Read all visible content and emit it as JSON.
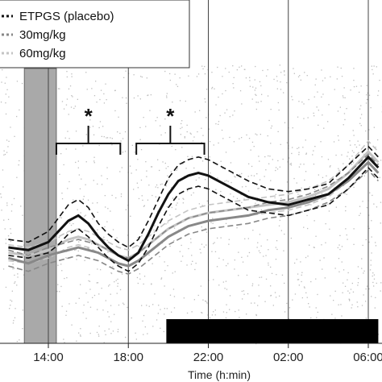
{
  "chart_data": {
    "type": "line",
    "xlabel": "Time (h:min)",
    "x_ticks": [
      "14:00",
      "18:00",
      "22:00",
      "02:00",
      "06:00"
    ],
    "x_tick_hours": [
      14,
      18,
      22,
      26,
      30
    ],
    "xlim_hours": [
      12,
      30.5
    ],
    "y_ticks": [],
    "grid": "vertical lines at each x tick",
    "legend": {
      "placement": "top-left",
      "entries": [
        {
          "label": "ETPGS (placebo)",
          "color": "#111111"
        },
        {
          "label": "30mg/kg",
          "color": "#888888"
        },
        {
          "label": "60mg/kg",
          "color": "#c4c4c4"
        }
      ]
    },
    "shaded_band_hours": [
      12.8,
      14.4
    ],
    "dark_bar_hours": [
      19.9,
      30.5
    ],
    "annotations": [
      {
        "text": "*",
        "from_hours": 14.4,
        "to_hours": 17.6
      },
      {
        "text": "*",
        "from_hours": 18.4,
        "to_hours": 21.8
      }
    ],
    "series": [
      {
        "name": "ETPGS (placebo)",
        "color": "#111111",
        "x_hours": [
          12,
          13,
          14,
          14.5,
          15,
          15.5,
          16,
          16.5,
          17,
          17.5,
          18,
          18.5,
          19,
          19.5,
          20,
          20.5,
          21,
          21.5,
          22,
          23,
          24,
          25,
          26,
          27,
          28,
          29,
          30,
          30.5
        ],
        "mean": [
          0.3,
          0.29,
          0.32,
          0.36,
          0.4,
          0.42,
          0.39,
          0.34,
          0.3,
          0.27,
          0.25,
          0.28,
          0.35,
          0.43,
          0.5,
          0.55,
          0.57,
          0.58,
          0.57,
          0.53,
          0.49,
          0.47,
          0.46,
          0.48,
          0.5,
          0.56,
          0.64,
          0.6
        ],
        "upper": [
          0.33,
          0.32,
          0.36,
          0.41,
          0.46,
          0.48,
          0.45,
          0.39,
          0.35,
          0.32,
          0.3,
          0.33,
          0.4,
          0.48,
          0.56,
          0.61,
          0.63,
          0.64,
          0.63,
          0.59,
          0.55,
          0.52,
          0.51,
          0.52,
          0.54,
          0.61,
          0.68,
          0.64
        ],
        "lower": [
          0.27,
          0.26,
          0.28,
          0.31,
          0.35,
          0.37,
          0.34,
          0.3,
          0.26,
          0.23,
          0.21,
          0.24,
          0.3,
          0.38,
          0.45,
          0.5,
          0.52,
          0.53,
          0.52,
          0.48,
          0.44,
          0.43,
          0.42,
          0.44,
          0.46,
          0.52,
          0.6,
          0.56
        ]
      },
      {
        "name": "30mg/kg",
        "color": "#888888",
        "x_hours": [
          12,
          13,
          14,
          14.5,
          15,
          15.5,
          16,
          16.5,
          17,
          17.5,
          18,
          18.5,
          19,
          19.5,
          20,
          20.5,
          21,
          21.5,
          22,
          23,
          24,
          25,
          26,
          27,
          28,
          29,
          30,
          30.5
        ],
        "mean": [
          0.26,
          0.24,
          0.27,
          0.28,
          0.29,
          0.3,
          0.29,
          0.28,
          0.26,
          0.24,
          0.23,
          0.25,
          0.28,
          0.31,
          0.34,
          0.36,
          0.38,
          0.39,
          0.4,
          0.41,
          0.42,
          0.44,
          0.45,
          0.47,
          0.5,
          0.55,
          0.62,
          0.58
        ],
        "upper": [
          0.29,
          0.27,
          0.3,
          0.31,
          0.32,
          0.33,
          0.32,
          0.31,
          0.29,
          0.27,
          0.26,
          0.28,
          0.31,
          0.34,
          0.37,
          0.39,
          0.41,
          0.42,
          0.43,
          0.44,
          0.45,
          0.47,
          0.48,
          0.5,
          0.53,
          0.58,
          0.65,
          0.61
        ],
        "lower": [
          0.23,
          0.21,
          0.24,
          0.25,
          0.26,
          0.27,
          0.26,
          0.25,
          0.23,
          0.21,
          0.2,
          0.22,
          0.25,
          0.28,
          0.31,
          0.33,
          0.35,
          0.36,
          0.37,
          0.38,
          0.39,
          0.41,
          0.42,
          0.44,
          0.47,
          0.52,
          0.59,
          0.55
        ]
      },
      {
        "name": "60mg/kg",
        "color": "#c4c4c4",
        "x_hours": [
          12,
          13,
          14,
          14.5,
          15,
          15.5,
          16,
          16.5,
          17,
          17.5,
          18,
          18.5,
          19,
          19.5,
          20,
          20.5,
          21,
          21.5,
          22,
          23,
          24,
          25,
          26,
          27,
          28,
          29,
          30,
          30.5
        ],
        "mean": [
          0.28,
          0.27,
          0.29,
          0.31,
          0.33,
          0.34,
          0.33,
          0.31,
          0.29,
          0.27,
          0.26,
          0.28,
          0.31,
          0.34,
          0.37,
          0.39,
          0.41,
          0.42,
          0.43,
          0.44,
          0.45,
          0.46,
          0.47,
          0.49,
          0.52,
          0.58,
          0.66,
          0.62
        ],
        "upper": [
          0.31,
          0.3,
          0.32,
          0.34,
          0.36,
          0.37,
          0.36,
          0.34,
          0.32,
          0.3,
          0.29,
          0.31,
          0.34,
          0.37,
          0.4,
          0.42,
          0.44,
          0.45,
          0.46,
          0.47,
          0.48,
          0.49,
          0.5,
          0.52,
          0.55,
          0.61,
          0.7,
          0.66
        ],
        "lower": [
          0.25,
          0.24,
          0.26,
          0.28,
          0.3,
          0.31,
          0.3,
          0.28,
          0.26,
          0.24,
          0.23,
          0.25,
          0.28,
          0.31,
          0.34,
          0.36,
          0.38,
          0.39,
          0.4,
          0.41,
          0.42,
          0.43,
          0.44,
          0.46,
          0.49,
          0.55,
          0.62,
          0.58
        ]
      }
    ]
  }
}
